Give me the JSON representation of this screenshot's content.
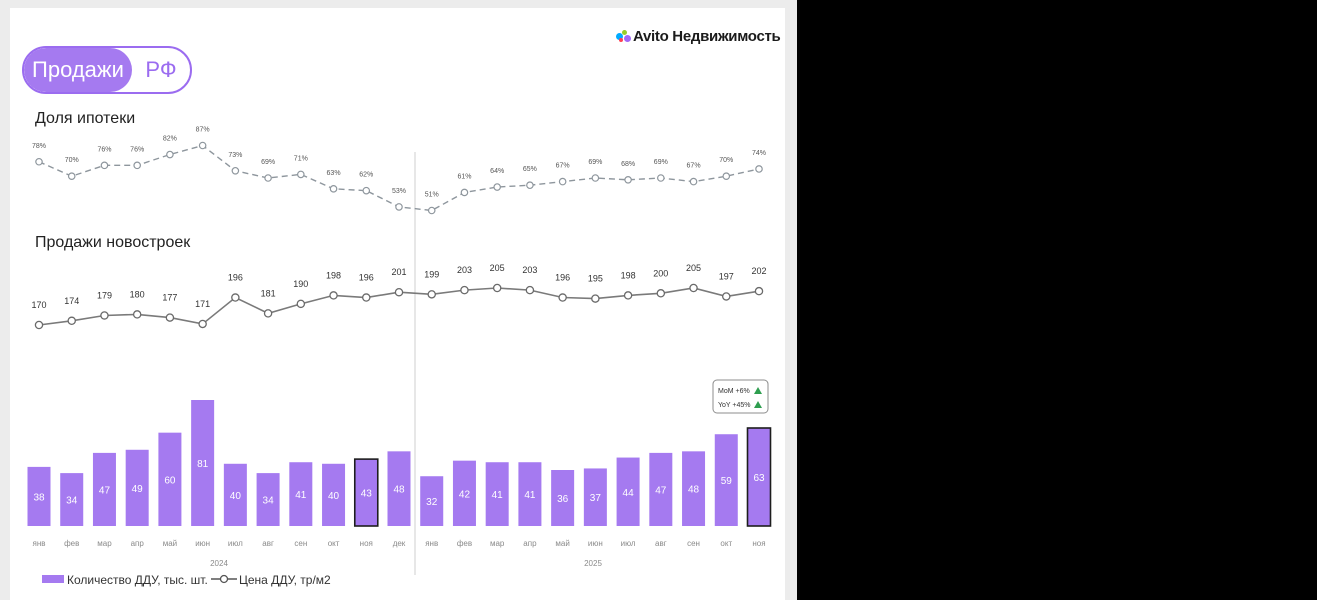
{
  "brand": {
    "name": "Avito Недвижимость"
  },
  "pill": {
    "left": "Продажи",
    "right": "РФ"
  },
  "colors": {
    "bar": "#a57af0",
    "accent": "#9b6cf0",
    "mortgage_line": "#8e969d",
    "sales_line": "#7a7a7a",
    "up": "#2e9e4f"
  },
  "chart_data": [
    {
      "type": "line",
      "title": "Доля ипотеки",
      "style": "dashed",
      "categories": [
        "янв",
        "фев",
        "мар",
        "апр",
        "май",
        "июн",
        "июл",
        "авг",
        "сен",
        "окт",
        "ноя",
        "дек",
        "янв",
        "фев",
        "мар",
        "апр",
        "май",
        "июн",
        "июл",
        "авг",
        "сен",
        "окт",
        "ноя"
      ],
      "values": [
        78,
        70,
        76,
        76,
        82,
        87,
        73,
        69,
        71,
        63,
        62,
        53,
        51,
        61,
        64,
        65,
        67,
        69,
        68,
        69,
        67,
        70,
        74
      ],
      "labels": [
        "78%",
        "70%",
        "76%",
        "76%",
        "82%",
        "87%",
        "73%",
        "69%",
        "71%",
        "63%",
        "62%",
        "53%",
        "51%",
        "61%",
        "64%",
        "65%",
        "67%",
        "69%",
        "68%",
        "69%",
        "67%",
        "70%",
        "74%"
      ]
    },
    {
      "type": "line",
      "title": "Продажи новостроек",
      "series_name": "Цена ДДУ, тр/м2",
      "categories": [
        "янв",
        "фев",
        "мар",
        "апр",
        "май",
        "июн",
        "июл",
        "авг",
        "сен",
        "окт",
        "ноя",
        "дек",
        "янв",
        "фев",
        "мар",
        "апр",
        "май",
        "июн",
        "июл",
        "авг",
        "сен",
        "окт",
        "ноя"
      ],
      "values": [
        170,
        174,
        179,
        180,
        177,
        171,
        196,
        181,
        190,
        198,
        196,
        201,
        199,
        203,
        205,
        203,
        196,
        195,
        198,
        200,
        205,
        197,
        202
      ]
    },
    {
      "type": "bar",
      "series_name": "Количество ДДУ, тыс. шт.",
      "categories": [
        "янв",
        "фев",
        "мар",
        "апр",
        "май",
        "июн",
        "июл",
        "авг",
        "сен",
        "окт",
        "ноя",
        "дек",
        "янв",
        "фев",
        "мар",
        "апр",
        "май",
        "июн",
        "июл",
        "авг",
        "сен",
        "окт",
        "ноя"
      ],
      "values": [
        38,
        34,
        47,
        49,
        60,
        81,
        40,
        34,
        41,
        40,
        43,
        48,
        32,
        42,
        41,
        41,
        36,
        37,
        44,
        47,
        48,
        59,
        63
      ],
      "highlighted": [
        "ноя 2024",
        "ноя 2025"
      ],
      "years": [
        {
          "label": "2024"
        },
        {
          "label": "2025"
        }
      ],
      "annotation": {
        "mom": "MoM +6%",
        "yoy": "YoY +45%"
      }
    }
  ],
  "legend": {
    "bars": "Количество ДДУ, тыс. шт.",
    "line": "Цена ДДУ, тр/м2"
  }
}
